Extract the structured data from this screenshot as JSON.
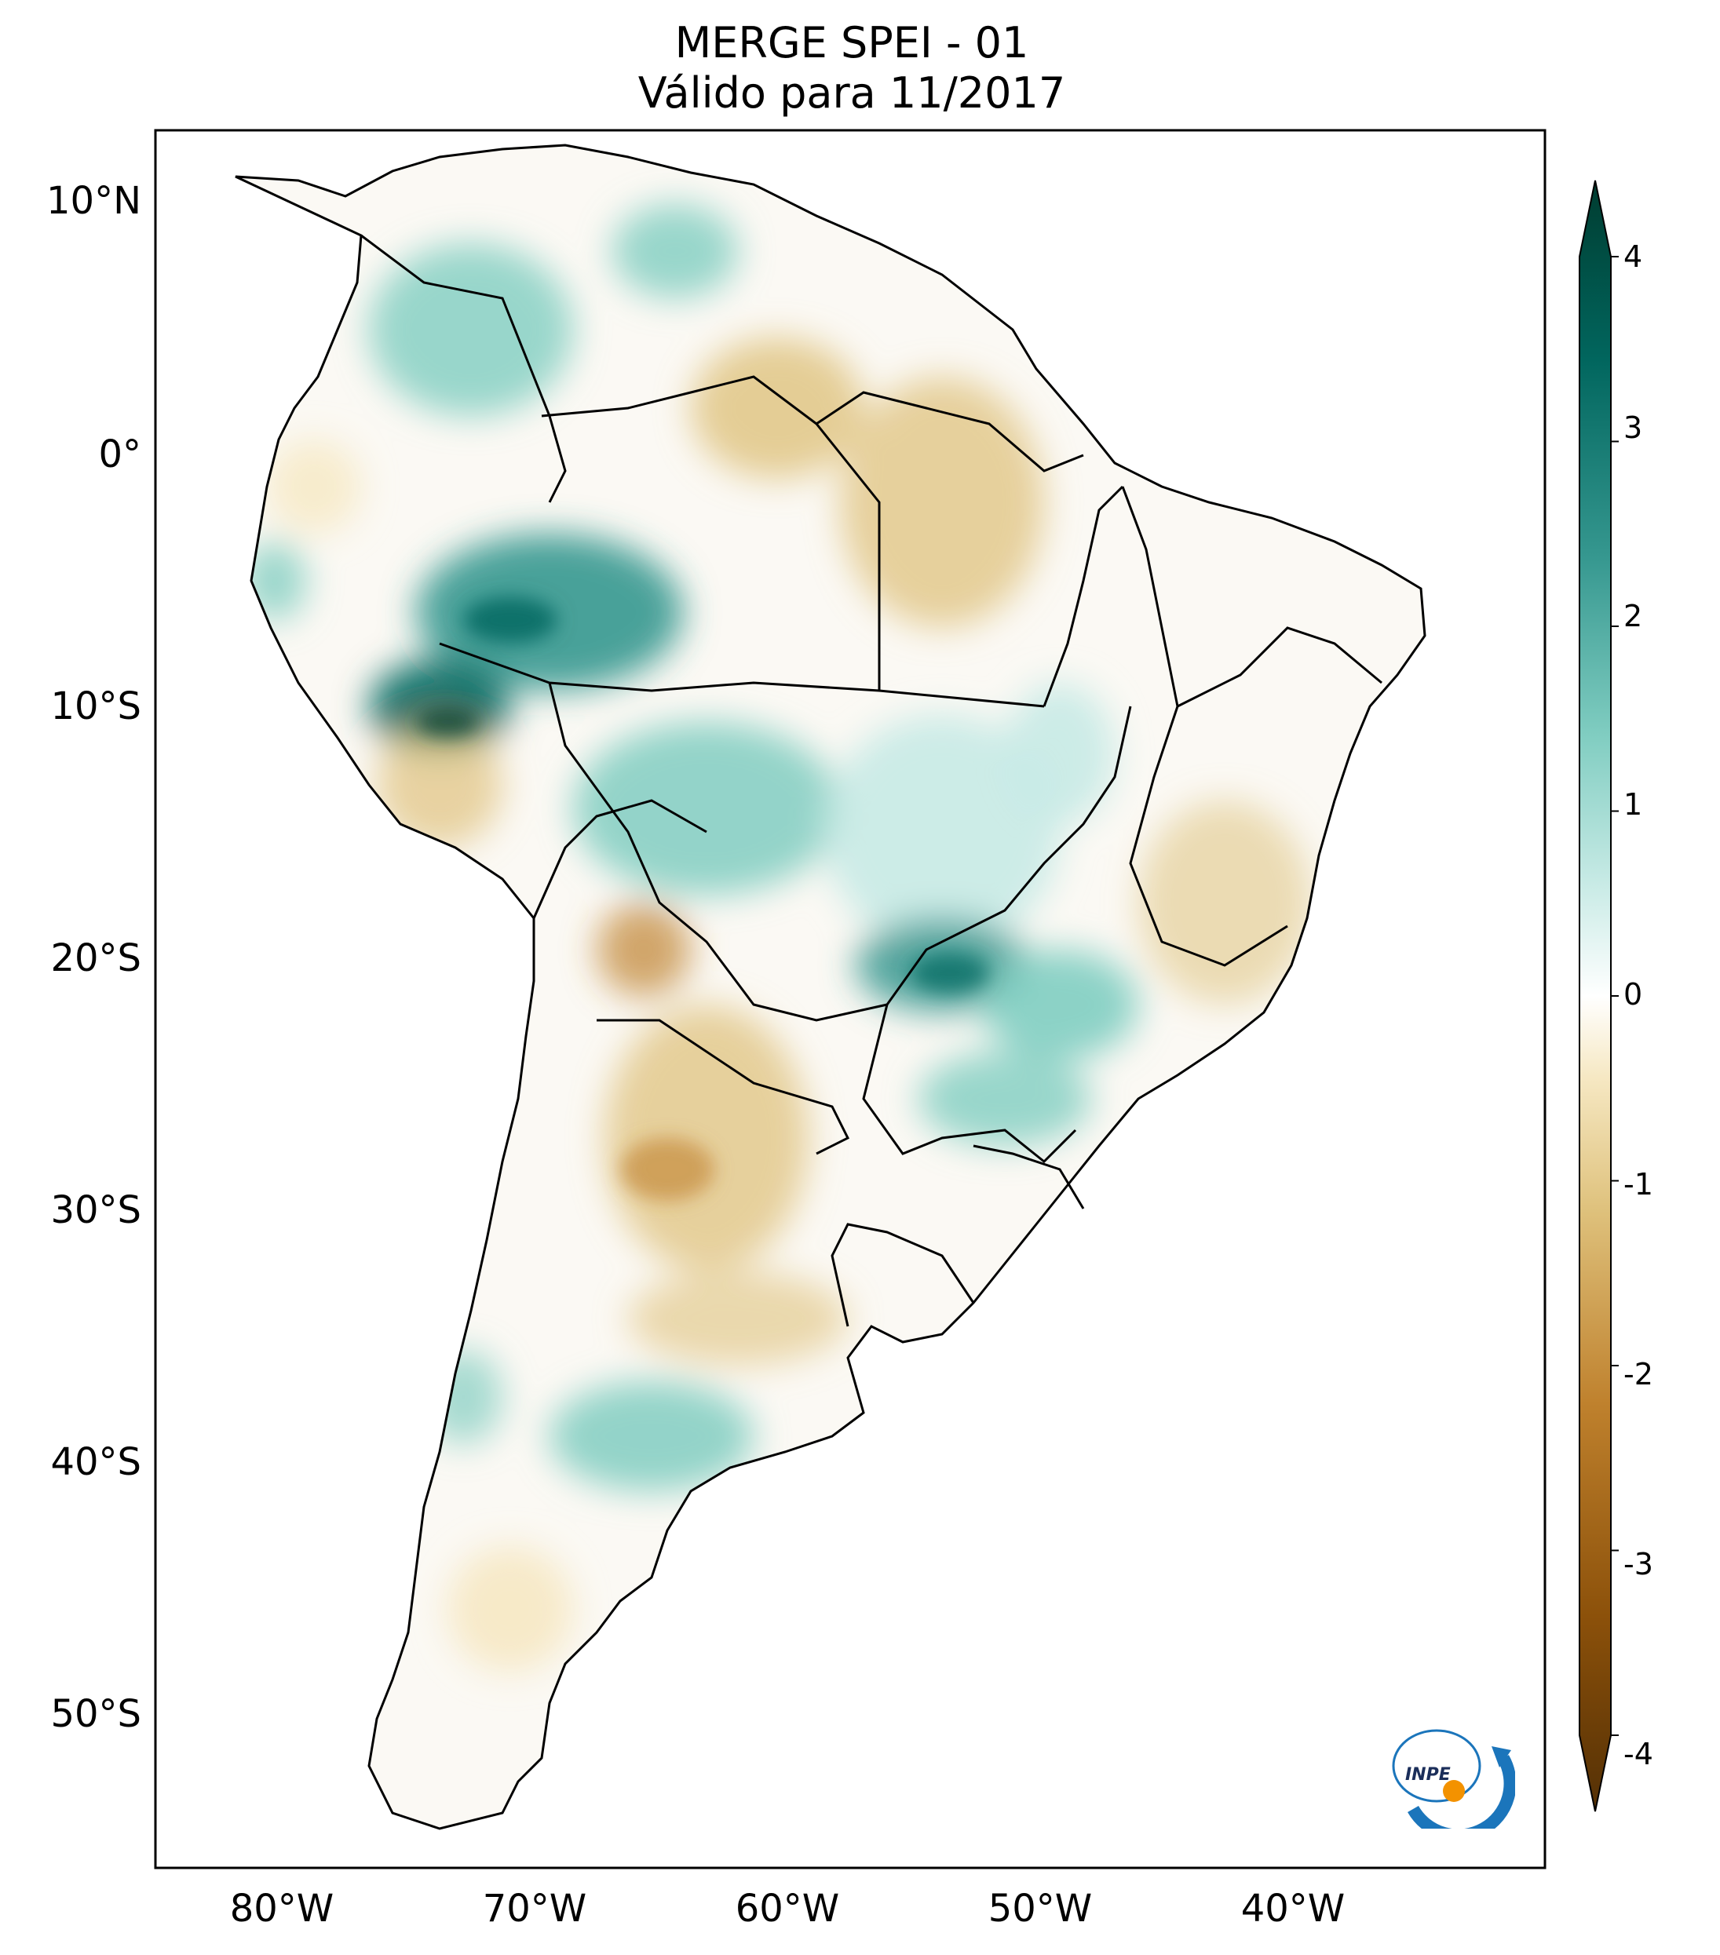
{
  "title": {
    "line1": "MERGE   SPEI - 01",
    "line2": "Válido para 11/2017"
  },
  "axes": {
    "lat_labels": [
      "10°N",
      "0°",
      "10°S",
      "20°S",
      "30°S",
      "40°S",
      "50°S"
    ],
    "lat_values": [
      10,
      0,
      -10,
      -20,
      -30,
      -40,
      -50
    ],
    "lon_labels": [
      "80°W",
      "70°W",
      "60°W",
      "50°W",
      "40°W"
    ],
    "lon_values": [
      -80,
      -70,
      -60,
      -50,
      -40
    ],
    "lon_range": [
      -85,
      -30
    ],
    "lat_range": [
      -56,
      13
    ]
  },
  "colorbar": {
    "labels": [
      "4",
      "3",
      "2",
      "1",
      "0",
      "-1",
      "-2",
      "-3",
      "-4"
    ],
    "values": [
      4,
      3,
      2,
      1,
      0,
      -1,
      -2,
      -3,
      -4
    ],
    "range": [
      -4,
      4
    ],
    "colors": [
      "#543005",
      "#8c510a",
      "#bf812d",
      "#dfc27d",
      "#f6e8c3",
      "#ffffff",
      "#c7eae5",
      "#80cdc1",
      "#35978f",
      "#01665e",
      "#003c30"
    ],
    "extend": "both"
  },
  "logo": {
    "text": "INPE"
  },
  "colors": {
    "land_border": "#000000",
    "wet": "#35978f",
    "very_wet": "#01665e",
    "dry": "#dfc27d",
    "very_dry": "#bf812d"
  }
}
